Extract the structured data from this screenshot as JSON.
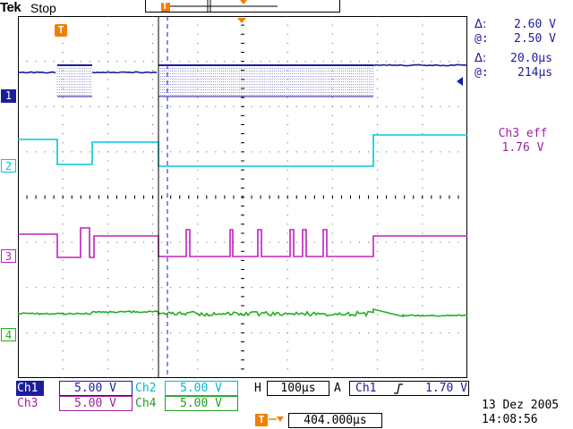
{
  "header": {
    "brand": "Tek",
    "run_state": "Stop"
  },
  "markers": {
    "trigger_marker": "T"
  },
  "channel_markers": [
    {
      "label": "1",
      "color": "#1c1c9c"
    },
    {
      "label": "2",
      "color": "#00c8d8"
    },
    {
      "label": "3",
      "color": "#c020c0"
    },
    {
      "label": "4",
      "color": "#20b020"
    }
  ],
  "cursor_readout": {
    "delta_v_symbol": "Δ:",
    "delta_v": "2.60 V",
    "at_v_symbol": "@:",
    "at_v": "2.50 V",
    "delta_t_symbol": "Δ:",
    "delta_t": "20.0µs",
    "at_t_symbol": "@:",
    "at_t": "214µs"
  },
  "measurement": {
    "name": "Ch3 eff",
    "value": "1.76 V"
  },
  "channels": [
    {
      "label": "Ch1",
      "scale": "5.00 V",
      "label_color": "#1c1c9c"
    },
    {
      "label": "Ch2",
      "scale": "5.00 V",
      "label_color": "#00b8c8"
    },
    {
      "label": "Ch3",
      "scale": "5.00 V",
      "label_color": "#a020a0"
    },
    {
      "label": "Ch4",
      "scale": "5.00 V",
      "label_color": "#20a020"
    }
  ],
  "timebase": {
    "label": "H",
    "value": "100µs"
  },
  "trigger": {
    "label": "A",
    "source": "Ch1",
    "slope_icon": "rising-edge-icon",
    "level": "1.70 V"
  },
  "trigger_position": {
    "value": "404.000µs"
  },
  "datetime": {
    "date": "13 Dez  2005",
    "time": "14:08:56"
  },
  "colors": {
    "ch1": "#1c1c9c",
    "ch2": "#00c8d8",
    "ch3": "#c020c0",
    "ch4": "#20b020",
    "trigger_orange": "#f08000"
  }
}
